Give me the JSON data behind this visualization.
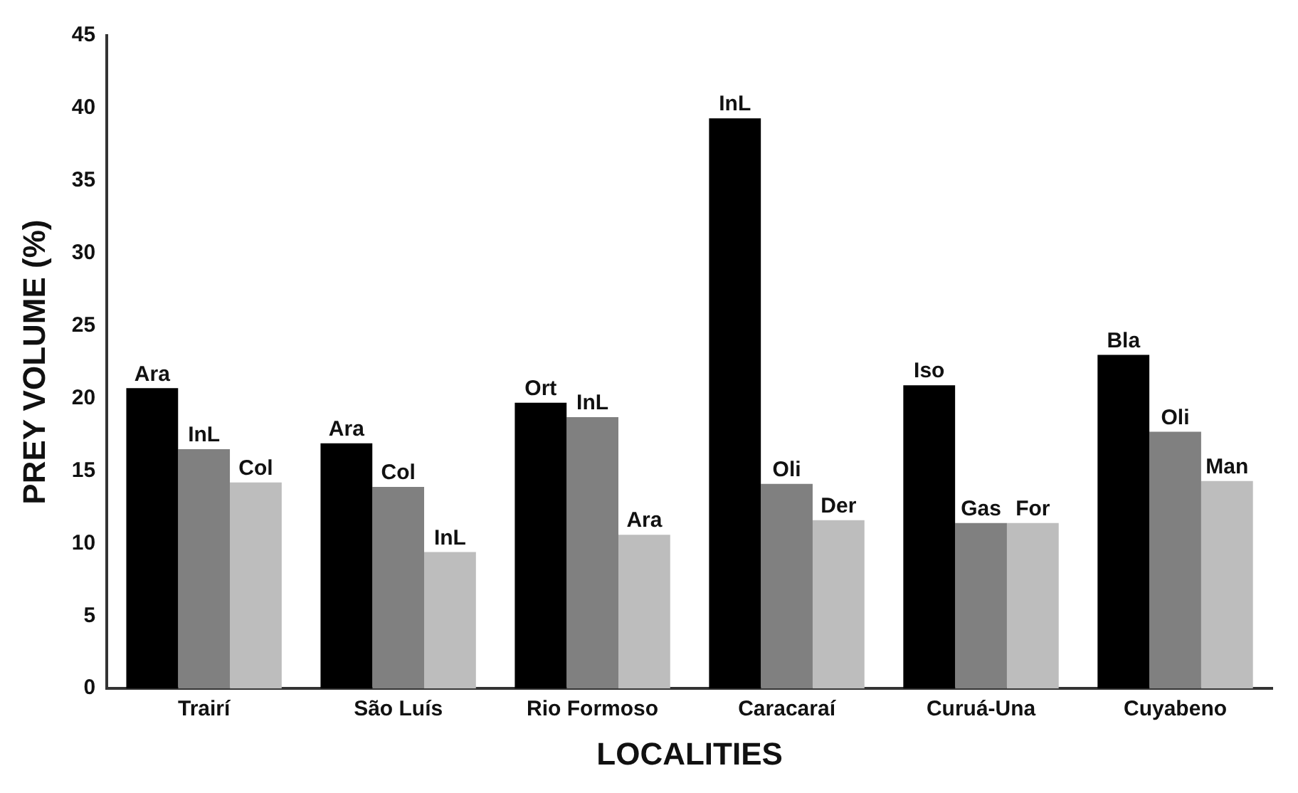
{
  "chart_data": {
    "type": "bar",
    "xlabel": "LOCALITIES",
    "ylabel": "PREY VOLUME (%)",
    "categories": [
      "Trairí",
      "São Luís",
      "Rio Formoso",
      "Caracaraí",
      "Curuá-Una",
      "Cuyabeno"
    ],
    "series": [
      {
        "color": "#000000",
        "values": [
          20.7,
          16.9,
          19.7,
          39.3,
          20.9,
          23.0
        ],
        "value_labels": [
          "Ara",
          "Ara",
          "Ort",
          "InL",
          "Iso",
          "Bla"
        ]
      },
      {
        "color": "#808080",
        "values": [
          16.5,
          13.9,
          18.7,
          14.1,
          11.4,
          17.7
        ],
        "value_labels": [
          "InL",
          "Col",
          "InL",
          "Oli",
          "Gas",
          "Oli"
        ]
      },
      {
        "color": "#bdbdbd",
        "values": [
          14.2,
          9.4,
          10.6,
          11.6,
          11.4,
          14.3
        ],
        "value_labels": [
          "Col",
          "InL",
          "Ara",
          "Der",
          "For",
          "Man"
        ]
      }
    ],
    "ylim": [
      0,
      45
    ],
    "yticks": [
      0,
      5,
      10,
      15,
      20,
      25,
      30,
      35,
      40,
      45
    ],
    "grid": false,
    "legend": false
  }
}
